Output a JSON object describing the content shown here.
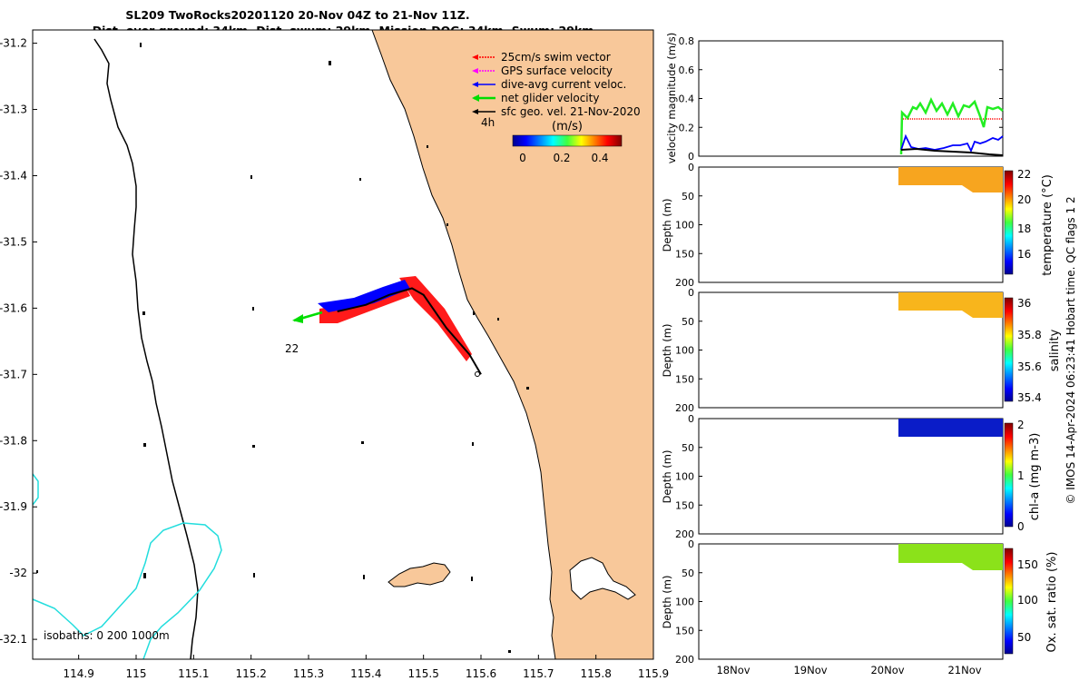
{
  "title": {
    "line1": "SL209 TwoRocks20201120 20-Nov 04Z to 21-Nov 11Z.",
    "line2": "Dist. over ground: 34km. Dist. swum: 29km. Mission DOG: 34km. Swum: 29km"
  },
  "map": {
    "x_ticks": [
      "114.9",
      "115",
      "115.1",
      "115.2",
      "115.3",
      "115.4",
      "115.5",
      "115.6",
      "115.7",
      "115.8",
      "115.9"
    ],
    "y_ticks": [
      "-31.2",
      "-31.3",
      "-31.4",
      "-31.5",
      "-31.6",
      "-31.7",
      "-31.8",
      "-31.9",
      "-32",
      "-32.1"
    ],
    "xlim": [
      114.82,
      115.9
    ],
    "ylim": [
      -32.13,
      -31.18
    ],
    "land_color": "#f8c89a",
    "isobath_labels": "isobaths: 0   200  1000m",
    "label_4h": "4h",
    "label_22": "22",
    "legend": [
      {
        "label": "25cm/s swim vector",
        "color": "#ff0000"
      },
      {
        "label": "GPS surface velocity",
        "color": "#ff00ff"
      },
      {
        "label": "dive-avg current veloc.",
        "color": "#0000ff"
      },
      {
        "label": "net glider velocity",
        "color": "#00dd00"
      },
      {
        "label": "sfc geo. vel. 21-Nov-2020",
        "color": "#000000"
      }
    ],
    "colorbar": {
      "label": "(m/s)",
      "ticks": [
        "0",
        "0.2",
        "0.4"
      ],
      "range": [
        0,
        0.5
      ]
    },
    "track": [
      {
        "lon": 115.6,
        "lat": -31.7
      },
      {
        "lon": 115.58,
        "lat": -31.67
      },
      {
        "lon": 115.54,
        "lat": -31.63
      },
      {
        "lon": 115.5,
        "lat": -31.58
      },
      {
        "lon": 115.48,
        "lat": -31.57
      },
      {
        "lon": 115.44,
        "lat": -31.58
      },
      {
        "lon": 115.4,
        "lat": -31.595
      },
      {
        "lon": 115.35,
        "lat": -31.605
      }
    ]
  },
  "panels": {
    "velocity": {
      "ylabel": "velocity magnitude (m/s)",
      "y_ticks": [
        "0",
        "0.2",
        "0.4",
        "0.6",
        "0.8"
      ]
    },
    "depth_ylabel": "Depth (m)",
    "depth_ticks": [
      "0",
      "50",
      "100",
      "150",
      "200"
    ],
    "temperature": {
      "label": "temperature (°C)",
      "ticks": [
        "16",
        "18",
        "20",
        "22"
      ]
    },
    "salinity": {
      "label": "salinity",
      "ticks": [
        "35.4",
        "35.6",
        "35.8",
        "36"
      ]
    },
    "chla": {
      "label": "chl-a (mg m-3)",
      "ticks": [
        "0",
        "1",
        "2"
      ]
    },
    "oxygen": {
      "label": "Ox. sat. ratio (%)",
      "ticks": [
        "50",
        "100",
        "150"
      ]
    },
    "x_ticks": [
      "18Nov",
      "19Nov",
      "20Nov",
      "21Nov"
    ]
  },
  "credit": "© IMOS 14-Apr-2024 06:23:41 Hobart time. QC flags 1  2",
  "chart_data": [
    {
      "type": "scatter",
      "title": "SL209 TwoRocks20201120 20-Nov 04Z to 21-Nov 11Z.",
      "xlabel": "",
      "ylabel": "",
      "xlim": [
        114.82,
        115.9
      ],
      "ylim": [
        -32.13,
        -31.18
      ],
      "series": [
        {
          "name": "net glider velocity",
          "x": [
            115.6,
            115.58,
            115.54,
            115.5,
            115.48,
            115.44,
            115.4,
            115.35
          ],
          "y": [
            -31.7,
            -31.67,
            -31.63,
            -31.58,
            -31.57,
            -31.58,
            -31.595,
            -31.605
          ]
        }
      ]
    },
    {
      "type": "line",
      "ylabel": "velocity magnitude (m/s)",
      "ylim": [
        0,
        0.8
      ],
      "x": [
        "20Nov",
        "21Nov"
      ],
      "series": [
        {
          "name": "25cm/s swim vector",
          "values": [
            0.25,
            0.25
          ]
        },
        {
          "name": "net glider velocity",
          "values": [
            0.3,
            0.32
          ]
        },
        {
          "name": "dive-avg current veloc.",
          "values": [
            0.05,
            0.13
          ]
        },
        {
          "name": "sfc geo. vel. 21-Nov-2020",
          "values": [
            0.05,
            0.01
          ]
        }
      ]
    },
    {
      "type": "heatmap",
      "ylabel": "Depth (m)",
      "ylim": [
        200,
        0
      ],
      "colorbar_label": "temperature (°C)",
      "colorbar_range": [
        15,
        22
      ],
      "value": 21
    },
    {
      "type": "heatmap",
      "ylabel": "Depth (m)",
      "ylim": [
        200,
        0
      ],
      "colorbar_label": "salinity",
      "colorbar_range": [
        35.35,
        36.05
      ],
      "value": 35.95
    },
    {
      "type": "heatmap",
      "ylabel": "Depth (m)",
      "ylim": [
        200,
        0
      ],
      "colorbar_label": "chl-a (mg m-3)",
      "colorbar_range": [
        0,
        2
      ],
      "value": 0.2
    },
    {
      "type": "heatmap",
      "ylabel": "Depth (m)",
      "ylim": [
        200,
        0
      ],
      "colorbar_label": "Ox. sat. ratio (%)",
      "colorbar_range": [
        25,
        170
      ],
      "value": 108
    }
  ]
}
